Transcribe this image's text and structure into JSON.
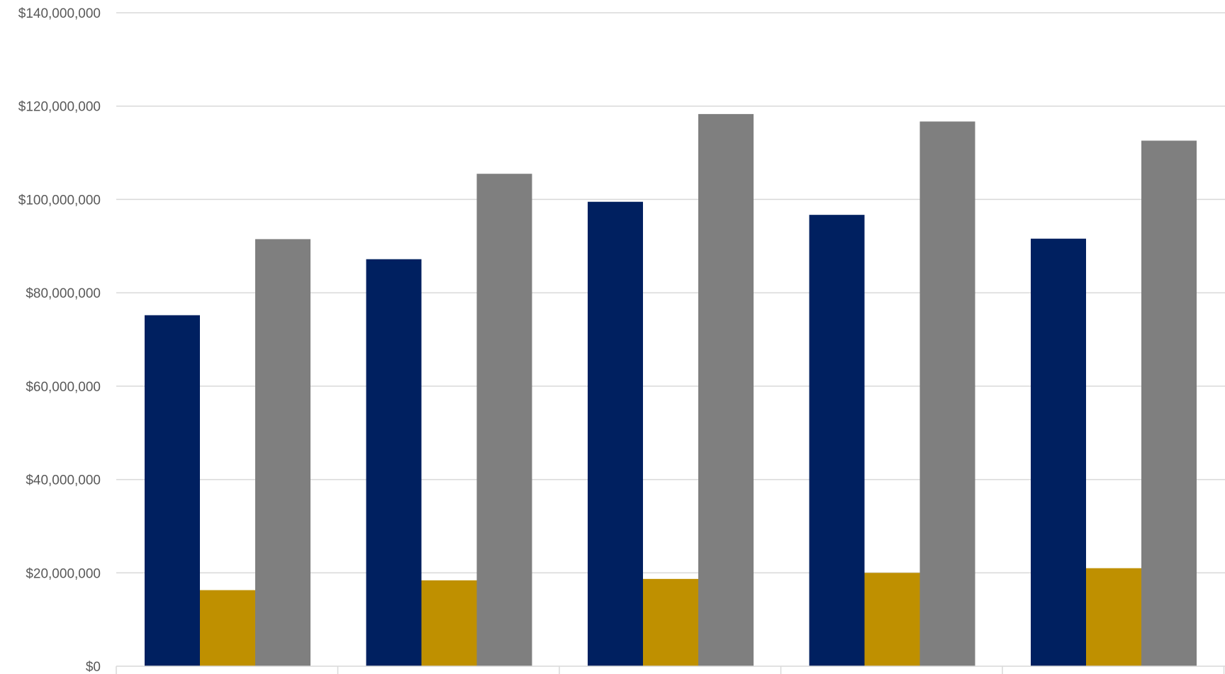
{
  "chart_data": {
    "type": "bar",
    "title": "",
    "xlabel": "",
    "ylabel": "",
    "categories": [
      "",
      "",
      "",
      "",
      ""
    ],
    "series": [
      {
        "color": "#002060",
        "values": [
          75200000,
          87200000,
          99500000,
          96700000,
          91600000
        ]
      },
      {
        "color": "#bf9000",
        "values": [
          16300000,
          18400000,
          18700000,
          20000000,
          21000000
        ]
      },
      {
        "color": "#7f7f7f",
        "values": [
          91500000,
          105500000,
          118300000,
          116700000,
          112600000
        ]
      }
    ],
    "ylim": [
      0,
      140000000
    ],
    "yticks": [
      0,
      20000000,
      40000000,
      60000000,
      80000000,
      100000000,
      120000000,
      140000000
    ],
    "ytick_labels": [
      "$0",
      "$20,000,000",
      "$40,000,000",
      "$60,000,000",
      "$80,000,000",
      "$100,000,000",
      "$120,000,000",
      "$140,000,000"
    ],
    "grid": true,
    "legend": "none"
  }
}
